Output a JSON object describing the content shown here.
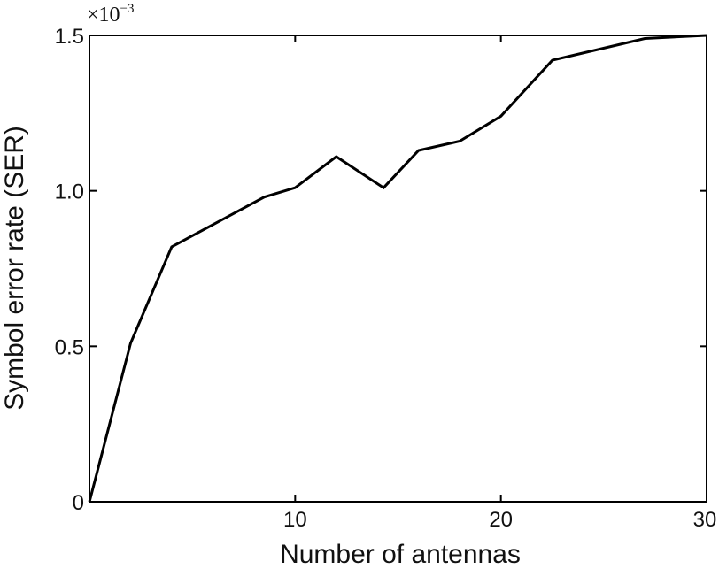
{
  "chart_data": {
    "type": "line",
    "title": "",
    "xlabel": "Number of antennas",
    "ylabel": "Symbol error rate (SER)",
    "y_multiplier": "×10",
    "y_multiplier_exp": "−3",
    "xlim": [
      0,
      30
    ],
    "ylim": [
      0,
      1.5
    ],
    "xticks": [
      10,
      20,
      30
    ],
    "xtick_labels": [
      "10",
      "20",
      "30"
    ],
    "yticks": [
      0,
      0.5,
      1.0,
      1.5
    ],
    "ytick_labels": [
      "0",
      "0.5",
      "1.0",
      "1.5"
    ],
    "grid": false,
    "series": [
      {
        "x": [
          0,
          2,
          4,
          8.5,
          10,
          12,
          14.3,
          16,
          18,
          20,
          22.5,
          27,
          30
        ],
        "y": [
          0,
          0.51,
          0.82,
          0.98,
          1.01,
          1.11,
          1.01,
          1.13,
          1.16,
          1.24,
          1.42,
          1.49,
          1.5
        ]
      }
    ],
    "line_color": "#000000"
  }
}
